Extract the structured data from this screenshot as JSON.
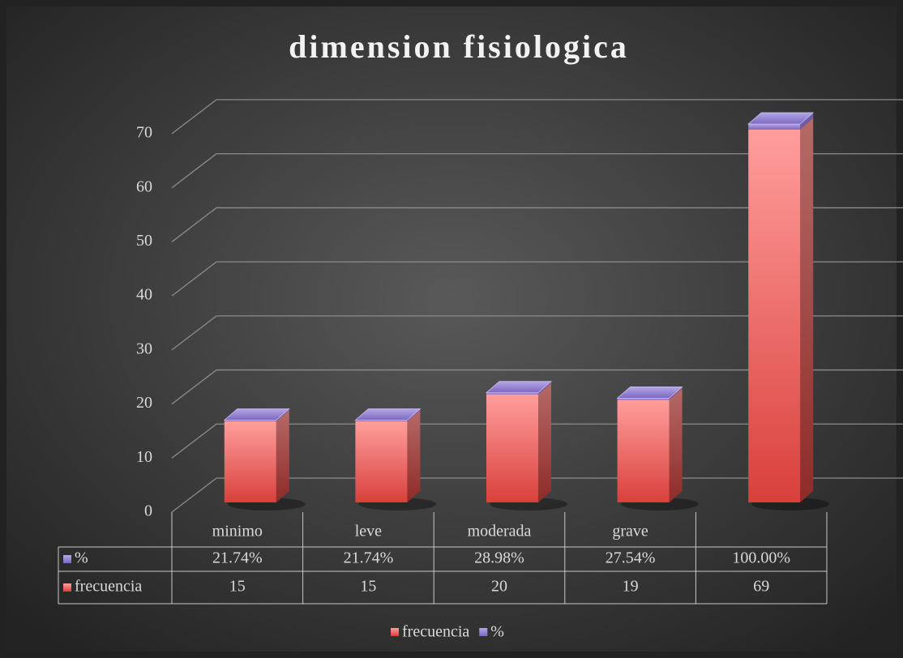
{
  "chart_data": {
    "type": "bar3d-stacked",
    "title": "dimension fisiologica",
    "categories": [
      "minimo",
      "leve",
      "moderada",
      "grave",
      null
    ],
    "series": [
      {
        "name": "frecuencia",
        "color": "#e0514f",
        "values": [
          15,
          15,
          20,
          19,
          69
        ]
      },
      {
        "name": "%",
        "color": "#9b87d6",
        "values": [
          0.2174,
          0.2174,
          0.2898,
          0.2754,
          1.0
        ],
        "value_labels": [
          "21.74%",
          "21.74%",
          "28.98%",
          "27.54%",
          "100.00%"
        ]
      }
    ],
    "ylim": [
      0,
      70
    ],
    "yticks": [
      0,
      10,
      20,
      30,
      40,
      50,
      60,
      70
    ],
    "grid": true,
    "legend": "bottom"
  }
}
